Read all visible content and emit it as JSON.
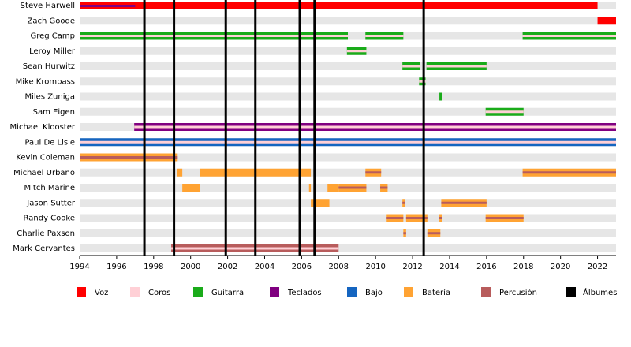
{
  "chart_data": {
    "type": "timeline",
    "xlim": [
      1994,
      2023
    ],
    "xticks": [
      1994,
      1996,
      1998,
      2000,
      2002,
      2004,
      2006,
      2008,
      2010,
      2012,
      2014,
      2016,
      2018,
      2020,
      2022
    ],
    "roles": [
      {
        "name": "Voz",
        "color": "#ff0000"
      },
      {
        "name": "Coros",
        "color": "#ffd0d6"
      },
      {
        "name": "Guitarra",
        "color": "#1aab1a"
      },
      {
        "name": "Teclados",
        "color": "#800080"
      },
      {
        "name": "Bajo",
        "color": "#1565c0"
      },
      {
        "name": "Batería",
        "color": "#ffa333"
      },
      {
        "name": "Percusión",
        "color": "#b85c5c"
      }
    ],
    "albums": {
      "name": "Álbumes",
      "color": "#000000",
      "x": [
        1997.5,
        1999.1,
        2001.9,
        2003.5,
        2005.9,
        2006.7,
        2012.6
      ]
    },
    "members": [
      {
        "name": "Steve Harwell",
        "periods": [
          {
            "start": 1994,
            "end": 2022,
            "roles": [
              0
            ]
          },
          {
            "start": 1994,
            "end": 1997,
            "roles": [
              3
            ]
          }
        ]
      },
      {
        "name": "Zach Goode",
        "periods": [
          {
            "start": 2022,
            "end": 2023,
            "roles": [
              0
            ]
          }
        ]
      },
      {
        "name": "Greg Camp",
        "periods": [
          {
            "start": 1994,
            "end": 2008.5,
            "roles": [
              2,
              1
            ]
          },
          {
            "start": 2009.45,
            "end": 2011.5,
            "roles": [
              2,
              1
            ]
          },
          {
            "start": 2017.95,
            "end": 2023,
            "roles": [
              2,
              1
            ]
          }
        ]
      },
      {
        "name": "Leroy Miller",
        "periods": [
          {
            "start": 2008.45,
            "end": 2009.5,
            "roles": [
              2,
              1
            ]
          }
        ]
      },
      {
        "name": "Sean Hurwitz",
        "periods": [
          {
            "start": 2011.45,
            "end": 2012.4,
            "roles": [
              2,
              1
            ]
          },
          {
            "start": 2012.75,
            "end": 2016,
            "roles": [
              2,
              1
            ]
          }
        ]
      },
      {
        "name": "Mike Krompass",
        "periods": [
          {
            "start": 2012.35,
            "end": 2012.7,
            "roles": [
              2,
              1
            ]
          }
        ]
      },
      {
        "name": "Miles Zuniga",
        "periods": [
          {
            "start": 2013.45,
            "end": 2013.6,
            "roles": [
              2
            ]
          }
        ]
      },
      {
        "name": "Sam Eigen",
        "periods": [
          {
            "start": 2015.95,
            "end": 2018,
            "roles": [
              2,
              1
            ]
          }
        ]
      },
      {
        "name": "Michael Klooster",
        "periods": [
          {
            "start": 1996.95,
            "end": 2023,
            "roles": [
              3,
              1
            ]
          }
        ]
      },
      {
        "name": "Paul De Lisle",
        "periods": [
          {
            "start": 1994,
            "end": 2023,
            "roles": [
              4,
              1
            ]
          }
        ]
      },
      {
        "name": "Kevin Coleman",
        "periods": [
          {
            "start": 1994,
            "end": 1999.3,
            "roles": [
              5,
              6
            ]
          }
        ]
      },
      {
        "name": "Michael Urbano",
        "periods": [
          {
            "start": 1999.25,
            "end": 1999.55,
            "roles": [
              5
            ]
          },
          {
            "start": 2000.5,
            "end": 2006.5,
            "roles": [
              5
            ]
          },
          {
            "start": 2009.45,
            "end": 2010.3,
            "roles": [
              5,
              6
            ]
          },
          {
            "start": 2017.95,
            "end": 2023,
            "roles": [
              5,
              6
            ]
          }
        ]
      },
      {
        "name": "Mitch Marine",
        "periods": [
          {
            "start": 1999.55,
            "end": 2000.5,
            "roles": [
              5
            ]
          },
          {
            "start": 2006.4,
            "end": 2006.5,
            "roles": [
              5
            ]
          },
          {
            "start": 2007.4,
            "end": 2008,
            "roles": [
              5
            ]
          },
          {
            "start": 2008,
            "end": 2009.5,
            "roles": [
              5,
              6
            ]
          },
          {
            "start": 2010.25,
            "end": 2010.65,
            "roles": [
              5,
              6
            ]
          }
        ]
      },
      {
        "name": "Jason Sutter",
        "periods": [
          {
            "start": 2006.5,
            "end": 2007.5,
            "roles": [
              5
            ]
          },
          {
            "start": 2011.45,
            "end": 2011.6,
            "roles": [
              5,
              6
            ]
          },
          {
            "start": 2013.55,
            "end": 2016,
            "roles": [
              5,
              6
            ]
          }
        ]
      },
      {
        "name": "Randy Cooke",
        "periods": [
          {
            "start": 2010.6,
            "end": 2011.5,
            "roles": [
              5,
              6
            ]
          },
          {
            "start": 2011.65,
            "end": 2012.8,
            "roles": [
              5,
              6
            ]
          },
          {
            "start": 2013.45,
            "end": 2013.6,
            "roles": [
              5,
              6
            ]
          },
          {
            "start": 2015.95,
            "end": 2018,
            "roles": [
              5,
              6
            ]
          }
        ]
      },
      {
        "name": "Charlie Paxson",
        "periods": [
          {
            "start": 2011.5,
            "end": 2011.65,
            "roles": [
              5,
              6
            ]
          },
          {
            "start": 2012.8,
            "end": 2013.5,
            "roles": [
              5,
              6
            ]
          }
        ]
      },
      {
        "name": "Mark Cervantes",
        "periods": [
          {
            "start": 1998.95,
            "end": 2008,
            "roles": [
              6,
              1
            ]
          }
        ]
      }
    ]
  }
}
